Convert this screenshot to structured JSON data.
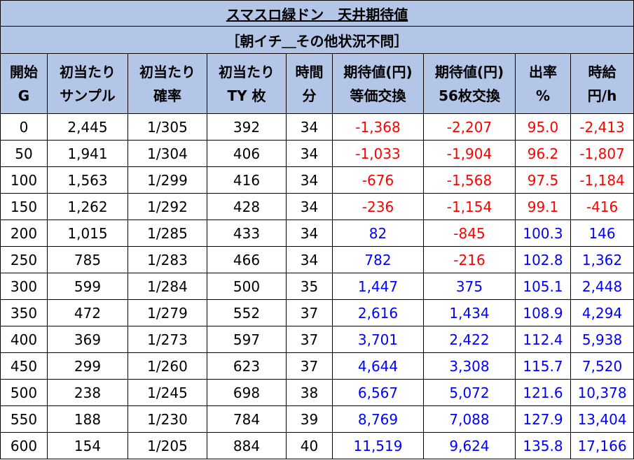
{
  "title": "スマスロ緑ドン　天井期待値",
  "subtitle": "［朝イチ＿その他状況不問］",
  "headers": [
    [
      "開始",
      "G"
    ],
    [
      "初当たり",
      "サンプル"
    ],
    [
      "初当たり",
      "確率"
    ],
    [
      "初当たり",
      "TY 枚"
    ],
    [
      "時間",
      "分"
    ],
    [
      "期待値(円)",
      "等価交換"
    ],
    [
      "期待値(円)",
      "56枚交換"
    ],
    [
      "出率",
      "%"
    ],
    [
      "時給",
      "円/h"
    ]
  ],
  "rows": [
    [
      "0",
      "2,445",
      "1/305",
      "392",
      "34",
      "-1,368",
      "-2,207",
      "95.0",
      "-2,413"
    ],
    [
      "50",
      "1,941",
      "1/304",
      "406",
      "34",
      "-1,033",
      "-1,904",
      "96.2",
      "-1,807"
    ],
    [
      "100",
      "1,563",
      "1/299",
      "416",
      "34",
      "-676",
      "-1,568",
      "97.5",
      "-1,184"
    ],
    [
      "150",
      "1,262",
      "1/292",
      "428",
      "34",
      "-236",
      "-1,154",
      "99.1",
      "-416"
    ],
    [
      "200",
      "1,015",
      "1/285",
      "433",
      "34",
      "82",
      "-845",
      "100.3",
      "146"
    ],
    [
      "250",
      "785",
      "1/283",
      "466",
      "34",
      "782",
      "-216",
      "102.8",
      "1,362"
    ],
    [
      "300",
      "599",
      "1/284",
      "500",
      "35",
      "1,447",
      "375",
      "105.1",
      "2,448"
    ],
    [
      "350",
      "472",
      "1/279",
      "552",
      "37",
      "2,616",
      "1,434",
      "108.9",
      "4,294"
    ],
    [
      "400",
      "369",
      "1/273",
      "597",
      "37",
      "3,701",
      "2,422",
      "112.4",
      "5,938"
    ],
    [
      "450",
      "299",
      "1/260",
      "623",
      "37",
      "4,644",
      "3,308",
      "115.7",
      "7,520"
    ],
    [
      "500",
      "238",
      "1/245",
      "698",
      "38",
      "6,567",
      "5,072",
      "121.6",
      "10,378"
    ],
    [
      "550",
      "188",
      "1/230",
      "784",
      "39",
      "8,769",
      "7,088",
      "127.9",
      "13,404"
    ],
    [
      "600",
      "154",
      "1/205",
      "884",
      "40",
      "11,519",
      "9,624",
      "135.8",
      "17,166"
    ]
  ],
  "colors": {
    "header_bg": "#b4c6e7",
    "negative": "#ff0000",
    "positive": "#0000ff"
  }
}
